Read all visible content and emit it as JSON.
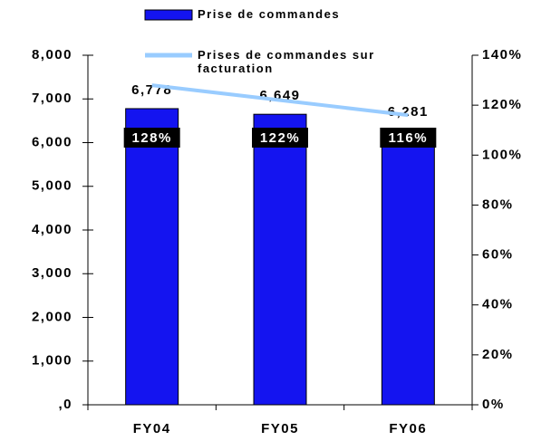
{
  "chart_data": {
    "type": "bar",
    "categories": [
      "FY04",
      "FY05",
      "FY06"
    ],
    "series": [
      {
        "name": "Prise de commandes",
        "color": "#1414f0",
        "values": [
          6778,
          6649,
          6281
        ],
        "value_labels": [
          "6,778",
          "6,649",
          "6,281"
        ]
      },
      {
        "name": "Prises de commandes sur facturation",
        "color": "#99ccff",
        "type": "line",
        "axis": "y2",
        "values": [
          128,
          122,
          116
        ],
        "value_labels": [
          "128%",
          "122%",
          "116%"
        ]
      }
    ],
    "ylim": [
      0,
      8000
    ],
    "yticks": [
      {
        "value": 0,
        "label": ",0"
      },
      {
        "value": 1000,
        "label": "1,000"
      },
      {
        "value": 2000,
        "label": "2,000"
      },
      {
        "value": 3000,
        "label": "3,000"
      },
      {
        "value": 4000,
        "label": "4,000"
      },
      {
        "value": 5000,
        "label": "5,000"
      },
      {
        "value": 6000,
        "label": "6,000"
      },
      {
        "value": 7000,
        "label": "7,000"
      },
      {
        "value": 8000,
        "label": "8,000"
      }
    ],
    "y2lim": [
      0,
      140
    ],
    "y2ticks": [
      {
        "value": 0,
        "label": "0%"
      },
      {
        "value": 20,
        "label": "20%"
      },
      {
        "value": 40,
        "label": "40%"
      },
      {
        "value": 60,
        "label": "60%"
      },
      {
        "value": 80,
        "label": "80%"
      },
      {
        "value": 100,
        "label": "100%"
      },
      {
        "value": 120,
        "label": "120%"
      },
      {
        "value": 140,
        "label": "140%"
      }
    ],
    "legend": "top",
    "grid": false
  }
}
